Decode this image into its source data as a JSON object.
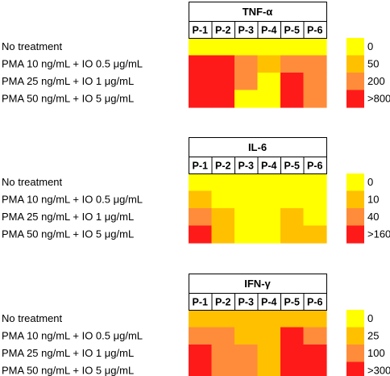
{
  "chart_data": [
    {
      "type": "heatmap",
      "title": "TNF-α",
      "columns": [
        "P-1",
        "P-2",
        "P-3",
        "P-4",
        "P-5",
        "P-6"
      ],
      "rows": [
        "No treatment",
        "PMA 10 ng/mL + IO 0.5 μg/mL",
        "PMA 25 ng/mL + IO 1 μg/mL",
        "PMA 50 ng/mL + IO 5 μg/mL"
      ],
      "levels": [
        [
          0,
          0,
          0,
          0,
          0,
          0
        ],
        [
          3,
          3,
          2,
          1,
          2,
          2
        ],
        [
          3,
          3,
          2,
          0,
          3,
          2
        ],
        [
          3,
          3,
          0,
          0,
          3,
          2
        ]
      ],
      "legend": {
        "labels": [
          "0",
          "50",
          "200",
          ">800"
        ],
        "colors": [
          "#ffff00",
          "#ffc000",
          "#ff8c3a",
          "#ff1a1a"
        ]
      }
    },
    {
      "type": "heatmap",
      "title": "IL-6",
      "columns": [
        "P-1",
        "P-2",
        "P-3",
        "P-4",
        "P-5",
        "P-6"
      ],
      "rows": [
        "No treatment",
        "PMA 10 ng/mL + IO 0.5 μg/mL",
        "PMA 25 ng/mL + IO 1 μg/mL",
        "PMA 50 ng/mL + IO 5 μg/mL"
      ],
      "levels": [
        [
          0,
          0,
          0,
          0,
          0,
          0
        ],
        [
          1,
          0,
          0,
          0,
          0,
          0
        ],
        [
          2,
          1,
          0,
          0,
          1,
          0
        ],
        [
          3,
          1,
          0,
          0,
          1,
          1
        ]
      ],
      "legend": {
        "labels": [
          "0",
          "10",
          "40",
          ">160"
        ],
        "colors": [
          "#ffff00",
          "#ffc000",
          "#ff8c3a",
          "#ff1a1a"
        ]
      }
    },
    {
      "type": "heatmap",
      "title": "IFN-γ",
      "columns": [
        "P-1",
        "P-2",
        "P-3",
        "P-4",
        "P-5",
        "P-6"
      ],
      "rows": [
        "No treatment",
        "PMA 10 ng/mL + IO 0.5 μg/mL",
        "PMA 25 ng/mL + IO 1 μg/mL",
        "PMA 50 ng/mL + IO 5 μg/mL"
      ],
      "levels": [
        [
          1,
          1,
          1,
          1,
          1,
          1
        ],
        [
          2,
          2,
          1,
          1,
          3,
          2
        ],
        [
          3,
          2,
          2,
          1,
          3,
          3
        ],
        [
          3,
          2,
          2,
          1,
          3,
          3
        ]
      ],
      "legend": {
        "labels": [
          "0",
          "25",
          "100",
          ">300"
        ],
        "colors": [
          "#ffff00",
          "#ffc000",
          "#ff8c3a",
          "#ff1a1a"
        ]
      }
    }
  ]
}
